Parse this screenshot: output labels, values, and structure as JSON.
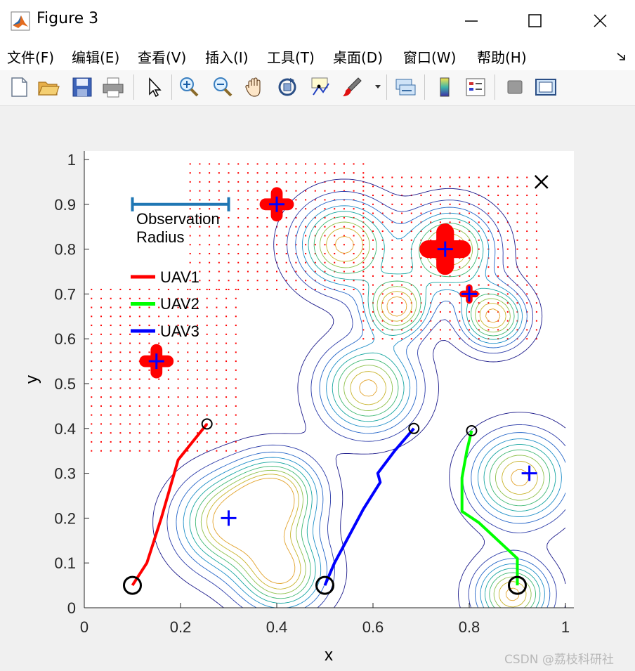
{
  "window": {
    "title": "Figure 3"
  },
  "menu": [
    "文件(F)",
    "编辑(E)",
    "查看(V)",
    "插入(I)",
    "工具(T)",
    "桌面(D)",
    "窗口(W)",
    "帮助(H)"
  ],
  "toolbar": [
    "new-figure-icon",
    "open-file-icon",
    "save-icon",
    "print-icon",
    "pointer-icon",
    "zoom-in-icon",
    "zoom-out-icon",
    "pan-icon",
    "rotate-3d-icon",
    "data-cursor-icon",
    "brush-icon",
    "link-plot-icon",
    "colorbar-icon",
    "legend-icon",
    "hide-plot-tools-icon",
    "show-plot-tools-icon"
  ],
  "watermark": "CSDN @荔枝科研社",
  "chart_data": {
    "type": "contour",
    "xlabel": "x",
    "ylabel": "y",
    "xlim": [
      0,
      1
    ],
    "ylim": [
      0,
      1
    ],
    "xticks": [
      "0",
      "0.2",
      "0.4",
      "0.6",
      "0.8",
      "1"
    ],
    "yticks": [
      "0",
      "0.1",
      "0.2",
      "0.3",
      "0.4",
      "0.5",
      "0.6",
      "0.7",
      "0.8",
      "0.9",
      "1"
    ],
    "annotation": {
      "line1": "Observation",
      "line2": "Radius",
      "x": [
        0.1,
        0.3
      ],
      "y": 0.9,
      "color": "#1f77b4"
    },
    "legend": [
      {
        "name": "UAV1",
        "color": "#ff0000"
      },
      {
        "name": "UAV2",
        "color": "#00ff00"
      },
      {
        "name": "UAV3",
        "color": "#0000ff"
      }
    ],
    "series": [
      {
        "name": "UAV1",
        "color": "#ff0000",
        "points": [
          [
            0.1,
            0.05
          ],
          [
            0.13,
            0.1
          ],
          [
            0.16,
            0.2
          ],
          [
            0.195,
            0.33
          ],
          [
            0.225,
            0.37
          ],
          [
            0.255,
            0.41
          ]
        ]
      },
      {
        "name": "UAV2",
        "color": "#00ff00",
        "points": [
          [
            0.9,
            0.05
          ],
          [
            0.9,
            0.11
          ],
          [
            0.86,
            0.15
          ],
          [
            0.82,
            0.19
          ],
          [
            0.785,
            0.215
          ],
          [
            0.785,
            0.29
          ],
          [
            0.795,
            0.35
          ],
          [
            0.805,
            0.395
          ]
        ]
      },
      {
        "name": "UAV3",
        "color": "#0000ff",
        "points": [
          [
            0.5,
            0.05
          ],
          [
            0.52,
            0.1
          ],
          [
            0.55,
            0.16
          ],
          [
            0.58,
            0.22
          ],
          [
            0.615,
            0.28
          ],
          [
            0.61,
            0.3
          ],
          [
            0.645,
            0.35
          ],
          [
            0.685,
            0.4
          ]
        ]
      }
    ],
    "start_points": [
      [
        0.1,
        0.05
      ],
      [
        0.5,
        0.05
      ],
      [
        0.9,
        0.05
      ]
    ],
    "end_points": [
      [
        0.255,
        0.41
      ],
      [
        0.685,
        0.4
      ],
      [
        0.805,
        0.395
      ]
    ],
    "targets": [
      [
        0.15,
        0.55
      ],
      [
        0.4,
        0.9
      ],
      [
        0.75,
        0.8
      ],
      [
        0.8,
        0.7
      ],
      [
        0.3,
        0.2
      ],
      [
        0.925,
        0.3
      ]
    ],
    "red_markers": [
      {
        "x": 0.15,
        "y": 0.55,
        "size": "medium"
      },
      {
        "x": 0.4,
        "y": 0.9,
        "size": "medium"
      },
      {
        "x": 0.75,
        "y": 0.8,
        "size": "large"
      },
      {
        "x": 0.8,
        "y": 0.7,
        "size": "small"
      }
    ],
    "goal_marker": {
      "symbol": "x",
      "x": 0.95,
      "y": 0.95
    },
    "observed_regions": [
      {
        "x": [
          0.015,
          0.32
        ],
        "y": [
          0.35,
          0.71
        ]
      },
      {
        "x": [
          0.22,
          0.58
        ],
        "y": [
          0.71,
          0.99
        ]
      },
      {
        "x": [
          0.58,
          0.95
        ],
        "y": [
          0.6,
          0.96
        ]
      }
    ],
    "peaks": [
      {
        "x": 0.4,
        "y": 0.25,
        "sigma": 0.06
      },
      {
        "x": 0.3,
        "y": 0.19,
        "sigma": 0.07
      },
      {
        "x": 0.41,
        "y": 0.08,
        "sigma": 0.06
      },
      {
        "x": 0.59,
        "y": 0.49,
        "sigma": 0.065
      },
      {
        "x": 0.54,
        "y": 0.81,
        "sigma": 0.065
      },
      {
        "x": 0.65,
        "y": 0.67,
        "sigma": 0.045
      },
      {
        "x": 0.76,
        "y": 0.8,
        "sigma": 0.06
      },
      {
        "x": 0.85,
        "y": 0.65,
        "sigma": 0.045
      },
      {
        "x": 0.905,
        "y": 0.29,
        "sigma": 0.065
      },
      {
        "x": 0.89,
        "y": 0.03,
        "sigma": 0.05
      }
    ],
    "contour_levels": 9
  }
}
